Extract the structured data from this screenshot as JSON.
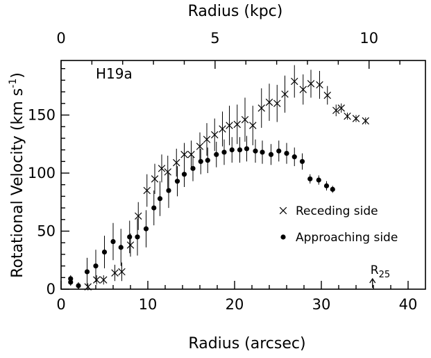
{
  "chart_data": {
    "type": "scatter",
    "title": "",
    "panel_label": "H19a",
    "xlabel": "Radius (arcsec)",
    "ylabel": "Rotational Velocity (km s",
    "ylabel_sup": "-1",
    "ylabel_close": ")",
    "top_axis_label": "Radius (kpc)",
    "xlim": [
      0,
      42
    ],
    "ylim": [
      0,
      197
    ],
    "xticks": [
      0,
      10,
      20,
      30,
      40
    ],
    "yticks": [
      0,
      50,
      100,
      150
    ],
    "top_axis": {
      "scale_arcsec_per_kpc": 3.55,
      "ticks": [
        0,
        5,
        10
      ]
    },
    "legend": {
      "position": "right",
      "entries": [
        {
          "marker": "cross",
          "label": "Receding side"
        },
        {
          "marker": "circle",
          "label": "Approaching side"
        }
      ]
    },
    "annotation": {
      "text": "R",
      "subscript": "25",
      "x": 35.9
    },
    "series": [
      {
        "name": "Receding side",
        "marker": "cross",
        "points": [
          [
            3.1,
            2,
            3
          ],
          [
            4.1,
            8,
            4
          ],
          [
            4.9,
            8,
            4
          ],
          [
            6.2,
            14,
            7
          ],
          [
            7.0,
            15,
            8
          ],
          [
            8.0,
            38,
            10
          ],
          [
            8.9,
            63,
            12
          ],
          [
            9.9,
            85,
            14
          ],
          [
            10.8,
            95,
            13
          ],
          [
            11.6,
            104,
            12
          ],
          [
            12.3,
            101,
            14
          ],
          [
            13.3,
            109,
            12
          ],
          [
            14.2,
            116,
            10
          ],
          [
            15.0,
            116,
            12
          ],
          [
            16.0,
            123,
            12
          ],
          [
            16.8,
            129,
            14
          ],
          [
            17.7,
            133,
            14
          ],
          [
            18.6,
            138,
            15
          ],
          [
            19.4,
            141,
            17
          ],
          [
            20.3,
            142,
            17
          ],
          [
            21.2,
            146,
            19
          ],
          [
            22.1,
            141,
            17
          ],
          [
            23.1,
            156,
            17
          ],
          [
            24.0,
            161,
            16
          ],
          [
            24.9,
            160,
            16
          ],
          [
            25.8,
            168,
            16
          ],
          [
            26.9,
            179,
            14
          ],
          [
            27.9,
            172,
            13
          ],
          [
            28.8,
            177,
            12
          ],
          [
            29.8,
            176,
            12
          ],
          [
            30.7,
            167,
            8
          ],
          [
            31.7,
            154,
            5
          ],
          [
            32.3,
            156,
            4
          ],
          [
            33.0,
            149,
            3
          ],
          [
            34.0,
            147,
            3
          ],
          [
            35.1,
            145,
            3
          ]
        ]
      },
      {
        "name": "Approaching side",
        "marker": "circle",
        "points": [
          [
            1.1,
            9,
            3
          ],
          [
            1.1,
            6,
            3
          ],
          [
            2.0,
            3,
            3
          ],
          [
            3.0,
            15,
            12
          ],
          [
            4.0,
            20,
            14
          ],
          [
            5.0,
            32,
            14
          ],
          [
            6.0,
            41,
            16
          ],
          [
            6.9,
            36,
            16
          ],
          [
            7.9,
            45,
            14
          ],
          [
            8.8,
            45,
            16
          ],
          [
            9.8,
            52,
            16
          ],
          [
            10.7,
            70,
            15
          ],
          [
            11.4,
            78,
            15
          ],
          [
            12.4,
            85,
            15
          ],
          [
            13.4,
            93,
            13
          ],
          [
            14.2,
            99,
            11
          ],
          [
            15.2,
            104,
            11
          ],
          [
            16.1,
            110,
            11
          ],
          [
            16.9,
            111,
            11
          ],
          [
            17.9,
            116,
            11
          ],
          [
            18.8,
            118,
            11
          ],
          [
            19.7,
            120,
            11
          ],
          [
            20.6,
            120,
            11
          ],
          [
            21.4,
            121,
            11
          ],
          [
            22.4,
            119,
            10
          ],
          [
            23.2,
            118,
            10
          ],
          [
            24.2,
            116,
            9
          ],
          [
            25.1,
            119,
            9
          ],
          [
            26.0,
            117,
            9
          ],
          [
            26.9,
            114,
            8
          ],
          [
            27.8,
            110,
            7
          ],
          [
            28.7,
            95,
            4
          ],
          [
            29.7,
            94,
            4
          ],
          [
            30.6,
            89,
            4
          ],
          [
            31.3,
            86,
            3
          ]
        ]
      }
    ]
  }
}
